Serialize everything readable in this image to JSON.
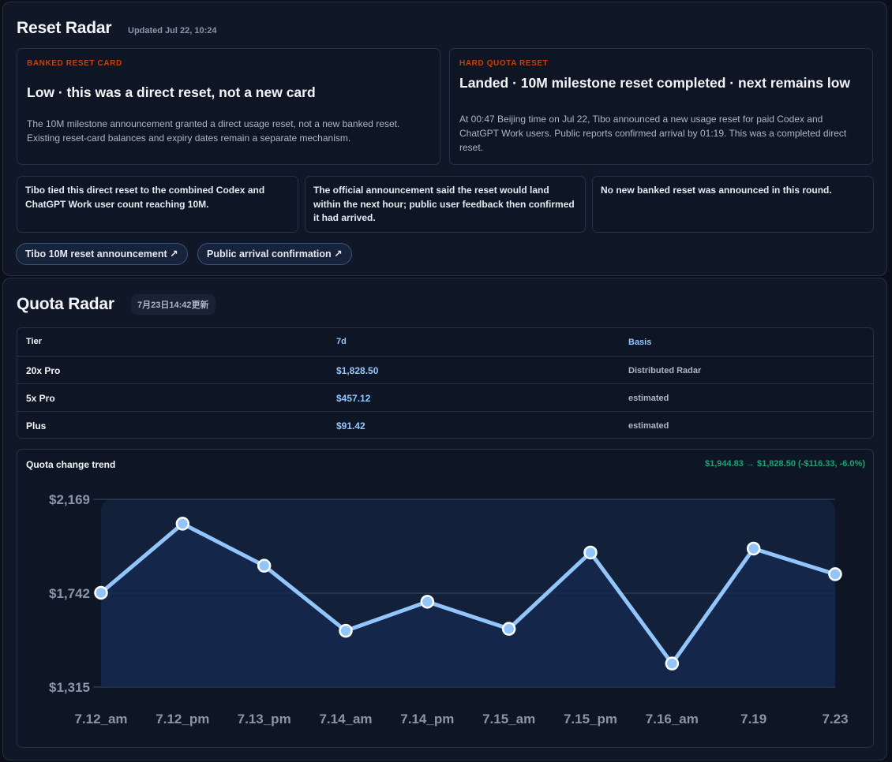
{
  "reset_radar": {
    "title": "Reset Radar",
    "updated": "Updated Jul 22, 10:24",
    "banked_card": {
      "eyebrow": "BANKED RESET CARD",
      "headline": "Low · this was a direct reset, not a new card",
      "body": "The 10M milestone announcement granted a direct usage reset, not a new banked reset. Existing reset-card balances and expiry dates remain a separate mechanism."
    },
    "hard_quota": {
      "eyebrow": "HARD QUOTA RESET",
      "headline": "Landed · 10M milestone reset completed · next remains low",
      "body": "At 00:47 Beijing time on Jul 22, Tibo announced a new usage reset for paid Codex and ChatGPT Work users. Public reports confirmed arrival by 01:19. This was a completed direct reset."
    },
    "notes": [
      "Tibo tied this direct reset to the combined Codex and ChatGPT Work user count reaching 10M.",
      "The official announcement said the reset would land within the next hour; public user feedback then confirmed it had arrived.",
      "No new banked reset was announced in this round."
    ],
    "links": [
      "Tibo 10M reset announcement ↗",
      "Public arrival confirmation ↗"
    ]
  },
  "quota_radar": {
    "title": "Quota Radar",
    "updated": "7月23日14:42更新",
    "table": {
      "headers": [
        "Tier",
        "7d",
        "Basis"
      ],
      "rows": [
        [
          "20x Pro",
          "$1,828.50",
          "Distributed Radar"
        ],
        [
          "5x Pro",
          "$457.12",
          "estimated"
        ],
        [
          "Plus",
          "$91.42",
          "estimated"
        ]
      ]
    },
    "trend": {
      "title": "Quota change trend",
      "change": "$1,944.83 → $1,828.50 (-$116.33, -6.0%)"
    }
  },
  "colors": {
    "accent_line": "#93c5fd",
    "eyebrow": "#c2410c",
    "change_negative": "#1fa174"
  },
  "chart_data": {
    "type": "line",
    "title": "Quota change trend",
    "categories": [
      "7.12_am",
      "7.12_pm",
      "7.13_pm",
      "7.14_am",
      "7.14_pm",
      "7.15_am",
      "7.15_pm",
      "7.16_am",
      "7.19",
      "7.23"
    ],
    "values": [
      1744,
      2058,
      1867,
      1571,
      1703,
      1580,
      1927,
      1422,
      1944.83,
      1828.5
    ],
    "yticks": [
      "$2,169",
      "$1,742",
      "$1,315"
    ],
    "ytick_values": [
      2169,
      1742,
      1315
    ],
    "ylim": [
      1315,
      2169
    ],
    "grid": true,
    "area_fill": true
  }
}
